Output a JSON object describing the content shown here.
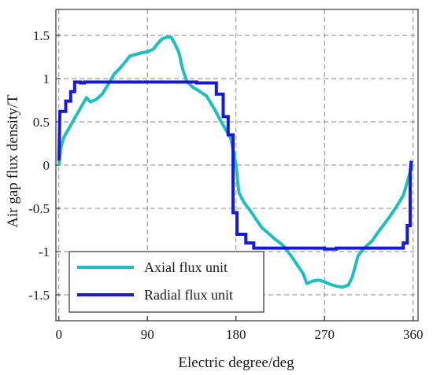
{
  "chart_data": {
    "type": "line",
    "title": "",
    "xlabel": "Electric degree/deg",
    "ylabel": "Air gap flux density/T",
    "xlim": [
      -3,
      365
    ],
    "ylim": [
      -1.8,
      1.8
    ],
    "x_ticks": [
      0,
      90,
      180,
      270,
      360
    ],
    "x_tick_labels": [
      "0",
      "90",
      "180",
      "270",
      "360"
    ],
    "y_ticks": [
      1.5,
      1,
      0.5,
      0,
      -0.5,
      -1,
      -1.5
    ],
    "y_tick_labels": [
      "1.5",
      "1",
      "0.5",
      "0",
      "-0.5",
      "-1",
      "-1.5"
    ],
    "grid": true,
    "legend_position": "bottom-left",
    "series": [
      {
        "name": "Axial flux unit",
        "color": "#1fbfbf",
        "style": "smooth",
        "points": [
          [
            0,
            0.0
          ],
          [
            2,
            0.2
          ],
          [
            5,
            0.32
          ],
          [
            10,
            0.42
          ],
          [
            15,
            0.52
          ],
          [
            20,
            0.62
          ],
          [
            25,
            0.72
          ],
          [
            28,
            0.78
          ],
          [
            32,
            0.73
          ],
          [
            38,
            0.76
          ],
          [
            44,
            0.82
          ],
          [
            50,
            0.93
          ],
          [
            56,
            1.05
          ],
          [
            62,
            1.12
          ],
          [
            68,
            1.2
          ],
          [
            72,
            1.26
          ],
          [
            78,
            1.28
          ],
          [
            85,
            1.3
          ],
          [
            90,
            1.31
          ],
          [
            96,
            1.34
          ],
          [
            100,
            1.4
          ],
          [
            105,
            1.46
          ],
          [
            110,
            1.48
          ],
          [
            114,
            1.48
          ],
          [
            118,
            1.4
          ],
          [
            122,
            1.3
          ],
          [
            126,
            1.1
          ],
          [
            130,
            0.97
          ],
          [
            136,
            0.9
          ],
          [
            142,
            0.86
          ],
          [
            150,
            0.8
          ],
          [
            158,
            0.65
          ],
          [
            164,
            0.52
          ],
          [
            170,
            0.4
          ],
          [
            175,
            0.3
          ],
          [
            180,
            0.0
          ],
          [
            183,
            -0.32
          ],
          [
            188,
            -0.43
          ],
          [
            194,
            -0.52
          ],
          [
            200,
            -0.62
          ],
          [
            206,
            -0.72
          ],
          [
            212,
            -0.78
          ],
          [
            220,
            -0.86
          ],
          [
            228,
            -0.93
          ],
          [
            236,
            -1.05
          ],
          [
            242,
            -1.15
          ],
          [
            248,
            -1.25
          ],
          [
            252,
            -1.37
          ],
          [
            258,
            -1.34
          ],
          [
            264,
            -1.33
          ],
          [
            270,
            -1.35
          ],
          [
            276,
            -1.38
          ],
          [
            282,
            -1.4
          ],
          [
            288,
            -1.41
          ],
          [
            294,
            -1.39
          ],
          [
            298,
            -1.3
          ],
          [
            304,
            -1.05
          ],
          [
            310,
            -0.96
          ],
          [
            318,
            -0.88
          ],
          [
            326,
            -0.75
          ],
          [
            334,
            -0.63
          ],
          [
            342,
            -0.5
          ],
          [
            350,
            -0.35
          ],
          [
            356,
            -0.12
          ],
          [
            359,
            0.0
          ]
        ]
      },
      {
        "name": "Radial flux unit",
        "color": "#1818d8",
        "style": "step",
        "points": [
          [
            0,
            0.05
          ],
          [
            1,
            0.62
          ],
          [
            7,
            0.62
          ],
          [
            7,
            0.74
          ],
          [
            12,
            0.74
          ],
          [
            12,
            0.85
          ],
          [
            16,
            0.85
          ],
          [
            16,
            0.96
          ],
          [
            22,
            0.96
          ],
          [
            22,
            0.95
          ],
          [
            26,
            0.95
          ],
          [
            26,
            0.96
          ],
          [
            140,
            0.96
          ],
          [
            140,
            0.95
          ],
          [
            160,
            0.95
          ],
          [
            160,
            0.82
          ],
          [
            167,
            0.82
          ],
          [
            167,
            0.56
          ],
          [
            172,
            0.56
          ],
          [
            172,
            0.35
          ],
          [
            177,
            0.35
          ],
          [
            177,
            -0.55
          ],
          [
            181,
            -0.55
          ],
          [
            181,
            -0.8
          ],
          [
            190,
            -0.8
          ],
          [
            190,
            -0.9
          ],
          [
            198,
            -0.9
          ],
          [
            198,
            -0.96
          ],
          [
            270,
            -0.96
          ],
          [
            270,
            -0.97
          ],
          [
            282,
            -0.97
          ],
          [
            282,
            -0.96
          ],
          [
            350,
            -0.96
          ],
          [
            350,
            -0.9
          ],
          [
            354,
            -0.9
          ],
          [
            354,
            -0.7
          ],
          [
            357,
            -0.7
          ],
          [
            357,
            -0.1
          ],
          [
            358,
            0.05
          ]
        ]
      }
    ]
  }
}
